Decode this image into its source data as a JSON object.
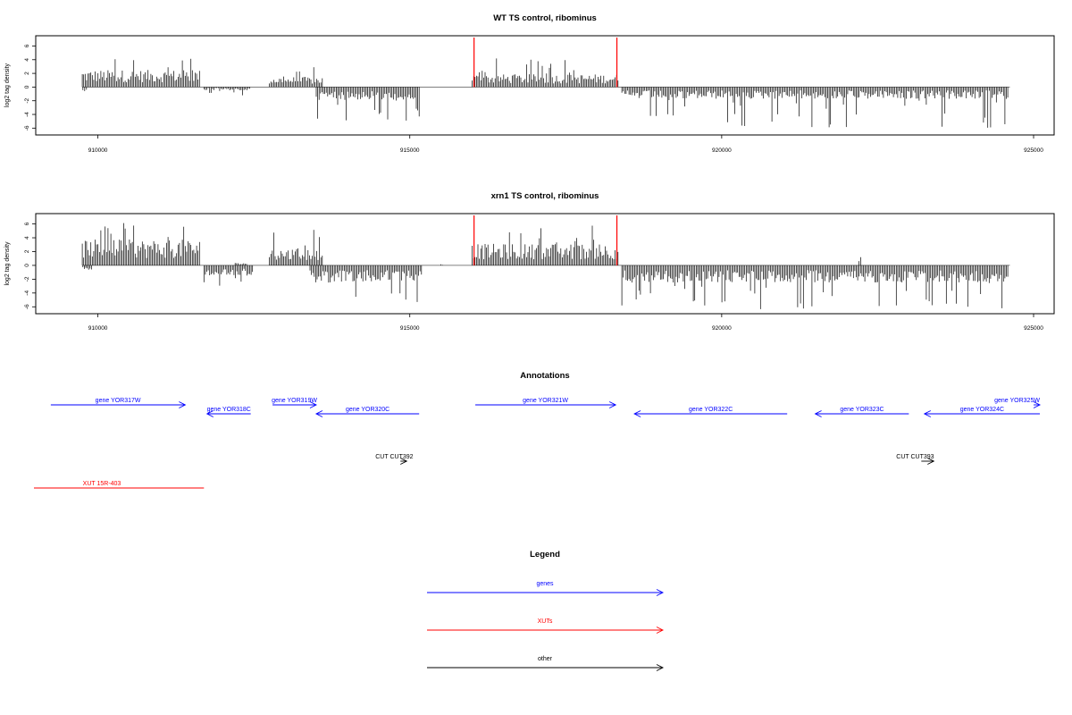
{
  "chart_data": [
    {
      "type": "bar",
      "title": "WT TS control, ribominus",
      "ylabel": "log2 tag density",
      "xlim": [
        909000,
        925500
      ],
      "ylim": [
        -7,
        7.5
      ],
      "xticks": [
        910000,
        915000,
        920000,
        925000
      ],
      "yticks": [
        -6,
        -4,
        -2,
        0,
        2,
        4,
        6
      ],
      "grid": false,
      "markers": [
        916030,
        918320
      ],
      "marker_color": "#ff0000",
      "bar_color": "#000000",
      "plus_segments": [
        [
          909750,
          911650,
          2.0,
          5.5
        ],
        [
          912750,
          913600,
          1.2,
          3.8
        ],
        [
          916000,
          918350,
          1.5,
          4.2
        ]
      ],
      "minus_segments": [
        [
          909760,
          909830,
          1.0,
          2.2
        ],
        [
          911700,
          912450,
          0.4,
          1.6
        ],
        [
          913500,
          915150,
          1.5,
          5.0
        ],
        [
          918400,
          924600,
          1.4,
          6.2
        ]
      ]
    },
    {
      "type": "bar",
      "title": "xrn1 TS control, ribominus",
      "ylabel": "log2 tag density",
      "xlim": [
        909000,
        925500
      ],
      "ylim": [
        -7,
        7.5
      ],
      "xticks": [
        910000,
        915000,
        920000,
        925000
      ],
      "yticks": [
        -6,
        -4,
        -2,
        0,
        2,
        4,
        6
      ],
      "grid": false,
      "markers": [
        916030,
        918320
      ],
      "marker_color": "#ff0000",
      "bar_color": "#000000",
      "plus_segments": [
        [
          909750,
          911650,
          3.0,
          6.8
        ],
        [
          912200,
          912400,
          0.3,
          1.5
        ],
        [
          912750,
          913600,
          2.0,
          5.6
        ],
        [
          915500,
          915550,
          0.2,
          0.8
        ],
        [
          916000,
          918350,
          2.5,
          5.8
        ],
        [
          922200,
          922250,
          1.0,
          2.2
        ]
      ],
      "minus_segments": [
        [
          909760,
          909900,
          0.5,
          1.2
        ],
        [
          911700,
          912500,
          1.2,
          3.5
        ],
        [
          913400,
          915200,
          2.0,
          5.8
        ],
        [
          918400,
          924600,
          2.0,
          6.4
        ]
      ]
    }
  ],
  "annotations": {
    "title": "Annotations",
    "genes": [
      {
        "label": "gene YOR317W",
        "color": "#0000ff",
        "row": 1,
        "dir": "right",
        "start": 909245,
        "end": 911400
      },
      {
        "label": "gene YOR318C",
        "color": "#0000ff",
        "row": 2,
        "dir": "left",
        "start": 911750,
        "end": 912450
      },
      {
        "label": "gene YOR319W",
        "color": "#0000ff",
        "row": 1,
        "dir": "right",
        "start": 912800,
        "end": 913500
      },
      {
        "label": "gene YOR320C",
        "color": "#0000ff",
        "row": 2,
        "dir": "left",
        "start": 913500,
        "end": 915150
      },
      {
        "label": "gene YOR321W",
        "color": "#0000ff",
        "row": 1,
        "dir": "right",
        "start": 916050,
        "end": 918300
      },
      {
        "label": "gene YOR322C",
        "color": "#0000ff",
        "row": 2,
        "dir": "left",
        "start": 918600,
        "end": 921050
      },
      {
        "label": "gene YOR323C",
        "color": "#0000ff",
        "row": 2,
        "dir": "left",
        "start": 921500,
        "end": 923000
      },
      {
        "label": "gene YOR324C",
        "color": "#0000ff",
        "row": 2,
        "dir": "left",
        "start": 923250,
        "end": 925100
      },
      {
        "label": "gene YOR325W",
        "color": "#0000ff",
        "row": 1,
        "dir": "right",
        "start": 925000,
        "end": 925100
      },
      {
        "label": "CUT CUT392",
        "color": "#000000",
        "row": 3,
        "dir": "right",
        "start": 914850,
        "end": 914950
      },
      {
        "label": "CUT CUT393",
        "color": "#000000",
        "row": 3,
        "dir": "right",
        "start": 923200,
        "end": 923400
      },
      {
        "label": "XUT 15R-403",
        "color": "#ff0000",
        "row": 4,
        "dir": "none",
        "start": 909000,
        "end": 911700
      }
    ]
  },
  "legend": {
    "title": "Legend",
    "items": [
      {
        "label": "genes",
        "color": "#0000ff"
      },
      {
        "label": "XUTs",
        "color": "#ff0000"
      },
      {
        "label": "other",
        "color": "#000000"
      }
    ]
  }
}
